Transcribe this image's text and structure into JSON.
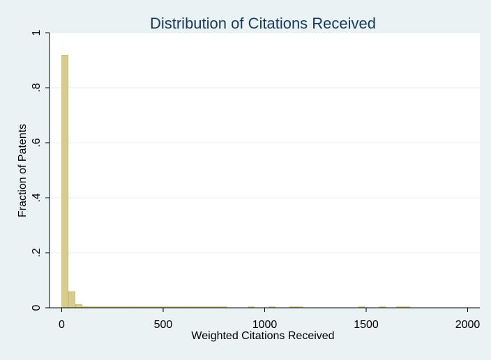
{
  "chart_data": {
    "type": "bar",
    "title": "Distribution of Citations Received",
    "xlabel": "Weighted Citations Received",
    "ylabel": "Fraction of Patents",
    "xlim": [
      -60,
      2060
    ],
    "ylim": [
      0,
      1
    ],
    "x_ticks": [
      0,
      500,
      1000,
      1500,
      2000
    ],
    "x_tick_labels": [
      "0",
      "500",
      "1000",
      "1500",
      "2000"
    ],
    "y_ticks": [
      0,
      0.2,
      0.4,
      0.6,
      0.8,
      1
    ],
    "y_tick_labels": [
      "0",
      ".2",
      ".4",
      ".6",
      ".8",
      "1"
    ],
    "grid": "horizontal",
    "bin_width": 34,
    "bins": [
      {
        "x0": 0,
        "value": 0.918
      },
      {
        "x0": 34,
        "value": 0.059
      },
      {
        "x0": 68,
        "value": 0.012
      },
      {
        "x0": 102,
        "value": 0.004
      },
      {
        "x0": 136,
        "value": 0.002
      },
      {
        "x0": 170,
        "value": 0.001
      },
      {
        "x0": 204,
        "value": 0.001
      },
      {
        "x0": 238,
        "value": 0.001
      },
      {
        "x0": 272,
        "value": 0.001
      },
      {
        "x0": 306,
        "value": 0.001
      },
      {
        "x0": 340,
        "value": 0.001
      },
      {
        "x0": 374,
        "value": 0.001
      },
      {
        "x0": 408,
        "value": 0.001
      },
      {
        "x0": 442,
        "value": 0.001
      },
      {
        "x0": 476,
        "value": 0.001
      },
      {
        "x0": 510,
        "value": 0.001
      },
      {
        "x0": 544,
        "value": 0.001
      },
      {
        "x0": 578,
        "value": 0.001
      },
      {
        "x0": 612,
        "value": 0.001
      },
      {
        "x0": 646,
        "value": 0.001
      },
      {
        "x0": 680,
        "value": 0.001
      },
      {
        "x0": 714,
        "value": 0.001
      },
      {
        "x0": 748,
        "value": 0.001
      },
      {
        "x0": 782,
        "value": 0.001
      },
      {
        "x0": 918,
        "value": 0.001
      },
      {
        "x0": 1020,
        "value": 0.001
      },
      {
        "x0": 1122,
        "value": 0.001
      },
      {
        "x0": 1156,
        "value": 0.001
      },
      {
        "x0": 1460,
        "value": 0.001
      },
      {
        "x0": 1565,
        "value": 0.001
      },
      {
        "x0": 1650,
        "value": 0.001
      },
      {
        "x0": 1684,
        "value": 0.001
      }
    ],
    "colors": {
      "background": "#eaf2f3",
      "plot_background": "#ffffff",
      "bar_fill": "#d6cd8d",
      "bar_stroke": "#b8ad63",
      "title": "#1a3a5c",
      "grid": "#e8eef0",
      "axis": "#000000"
    }
  }
}
